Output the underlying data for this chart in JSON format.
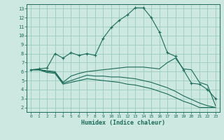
{
  "xlabel": "Humidex (Indice chaleur)",
  "bg_color": "#cce8e0",
  "grid_color": "#99ccbb",
  "line_color": "#1a6b5a",
  "xlim": [
    -0.5,
    23.5
  ],
  "ylim": [
    1.5,
    13.5
  ],
  "xticks": [
    0,
    1,
    2,
    3,
    4,
    5,
    6,
    7,
    8,
    9,
    10,
    11,
    12,
    13,
    14,
    15,
    16,
    17,
    18,
    19,
    20,
    21,
    22,
    23
  ],
  "yticks": [
    2,
    3,
    4,
    5,
    6,
    7,
    8,
    9,
    10,
    11,
    12,
    13
  ],
  "series": [
    {
      "x": [
        0,
        1,
        2,
        3,
        4,
        5,
        6,
        7,
        8,
        9,
        10,
        11,
        12,
        13,
        14,
        15,
        16,
        17,
        18,
        19,
        20,
        21,
        22,
        23
      ],
      "y": [
        6.2,
        6.3,
        6.4,
        8.0,
        7.5,
        8.1,
        7.8,
        8.0,
        7.8,
        9.7,
        10.9,
        11.7,
        12.3,
        13.1,
        13.1,
        12.0,
        10.4,
        8.1,
        7.7,
        6.2,
        4.7,
        4.6,
        4.0,
        3.0
      ],
      "marker": "+"
    },
    {
      "x": [
        0,
        1,
        2,
        3,
        4,
        5,
        6,
        7,
        8,
        9,
        10,
        11,
        12,
        13,
        14,
        15,
        16,
        17,
        18,
        19,
        20,
        21,
        22,
        23
      ],
      "y": [
        6.2,
        6.2,
        6.1,
        6.0,
        4.8,
        5.5,
        5.8,
        6.0,
        6.1,
        6.2,
        6.3,
        6.4,
        6.5,
        6.5,
        6.5,
        6.4,
        6.3,
        7.0,
        7.5,
        6.3,
        6.2,
        4.8,
        4.5,
        2.2
      ],
      "marker": null
    },
    {
      "x": [
        0,
        1,
        2,
        3,
        4,
        5,
        6,
        7,
        8,
        9,
        10,
        11,
        12,
        13,
        14,
        15,
        16,
        17,
        18,
        19,
        20,
        21,
        22,
        23
      ],
      "y": [
        6.2,
        6.2,
        6.0,
        5.9,
        4.7,
        5.0,
        5.3,
        5.6,
        5.5,
        5.5,
        5.4,
        5.4,
        5.3,
        5.2,
        5.0,
        4.8,
        4.5,
        4.2,
        3.8,
        3.3,
        2.9,
        2.5,
        2.2,
        2.0
      ],
      "marker": null
    },
    {
      "x": [
        0,
        1,
        2,
        3,
        4,
        5,
        6,
        7,
        8,
        9,
        10,
        11,
        12,
        13,
        14,
        15,
        16,
        17,
        18,
        19,
        20,
        21,
        22,
        23
      ],
      "y": [
        6.2,
        6.2,
        5.9,
        5.8,
        4.6,
        4.8,
        5.0,
        5.2,
        5.1,
        5.0,
        4.9,
        4.8,
        4.6,
        4.5,
        4.3,
        4.1,
        3.8,
        3.5,
        3.1,
        2.7,
        2.4,
        2.0,
        2.0,
        2.0
      ],
      "marker": null
    }
  ]
}
